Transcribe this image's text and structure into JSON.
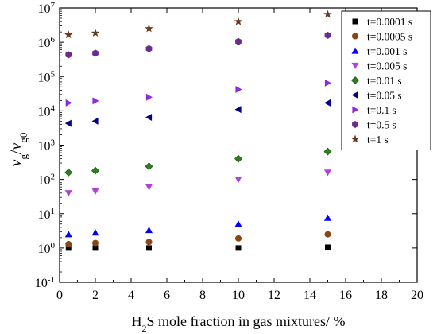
{
  "chart_data": {
    "type": "scatter",
    "title": "",
    "xlabel": "H2S mole fraction in gas mixtures/ %",
    "xlabel_parts": {
      "pre": "H",
      "sub": "2",
      "post": "S mole fraction in gas mixtures/ %"
    },
    "ylabel": "vg/vg0",
    "ylabel_parts": {
      "v1": "v",
      "sub1": "g",
      "slash": "/",
      "v2": "v",
      "sub2": "g0"
    },
    "xlim": [
      0,
      20
    ],
    "ylim": [
      0.1,
      10000000
    ],
    "yscale": "log",
    "grid": false,
    "legend_position": "top-right",
    "x_ticks": [
      "0",
      "2",
      "4",
      "6",
      "8",
      "10",
      "12",
      "14",
      "16",
      "18",
      "20"
    ],
    "y_ticks": [
      {
        "base": "10",
        "exp": "-1"
      },
      {
        "base": "10",
        "exp": "0"
      },
      {
        "base": "10",
        "exp": "1"
      },
      {
        "base": "10",
        "exp": "2"
      },
      {
        "base": "10",
        "exp": "3"
      },
      {
        "base": "10",
        "exp": "4"
      },
      {
        "base": "10",
        "exp": "5"
      },
      {
        "base": "10",
        "exp": "6"
      },
      {
        "base": "10",
        "exp": "7"
      }
    ],
    "x": [
      0.5,
      2,
      5,
      10,
      15
    ],
    "series": [
      {
        "name": "t=0.0001 s",
        "marker": "square",
        "color": "#000000",
        "values": [
          1.0,
          1.0,
          1.0,
          1.0,
          1.05
        ]
      },
      {
        "name": "t=0.0005 s",
        "marker": "circle",
        "color": "#8b4513",
        "values": [
          1.3,
          1.4,
          1.5,
          1.9,
          2.5
        ]
      },
      {
        "name": "t=0.001 s",
        "marker": "triangle-up",
        "color": "#0000ff",
        "values": [
          2.5,
          2.8,
          3.3,
          5.0,
          7.5
        ]
      },
      {
        "name": "t=0.005 s",
        "marker": "triangle-down",
        "color": "#b040e0",
        "values": [
          40,
          45,
          60,
          100,
          160
        ]
      },
      {
        "name": "t=0.01 s",
        "marker": "diamond",
        "color": "#2e7d1e",
        "values": [
          160,
          180,
          240,
          400,
          650
        ]
      },
      {
        "name": "t=0.05 s",
        "marker": "triangle-left",
        "color": "#00008b",
        "values": [
          4300,
          5000,
          6500,
          11000,
          17000
        ]
      },
      {
        "name": "t=0.1 s",
        "marker": "triangle-right",
        "color": "#8a2be2",
        "values": [
          17000,
          19500,
          25000,
          42000,
          65000
        ]
      },
      {
        "name": "t=0.5 s",
        "marker": "hexagon",
        "color": "#6a2c8f",
        "values": [
          430000,
          480000,
          650000,
          1050000,
          1600000
        ]
      },
      {
        "name": "t=1 s",
        "marker": "star",
        "color": "#6b3a1e",
        "values": [
          1650000,
          1850000,
          2500000,
          4000000,
          6500000
        ]
      }
    ]
  }
}
